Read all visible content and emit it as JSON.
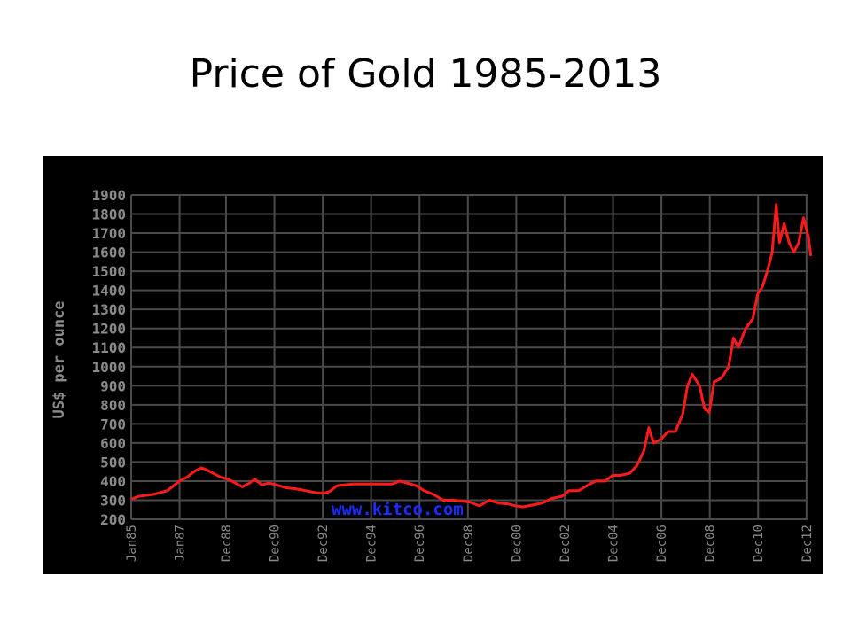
{
  "slide": {
    "title": "Price of Gold 1985-2013"
  },
  "chart_data": {
    "type": "line",
    "title": "",
    "xlabel": "",
    "ylabel": "US$ per ounce",
    "watermark": "www.kitco.com",
    "ylim": [
      200,
      1900
    ],
    "yticks": [
      200,
      300,
      400,
      500,
      600,
      700,
      800,
      900,
      1000,
      1100,
      1200,
      1300,
      1400,
      1500,
      1600,
      1700,
      1800,
      1900
    ],
    "xlim": [
      1985.0,
      2013.0
    ],
    "xticks": [
      {
        "label": "Jan85",
        "x": 1985.0
      },
      {
        "label": "Jan87",
        "x": 1987.0
      },
      {
        "label": "Dec88",
        "x": 1988.92
      },
      {
        "label": "Dec90",
        "x": 1990.92
      },
      {
        "label": "Dec92",
        "x": 1992.92
      },
      {
        "label": "Dec94",
        "x": 1994.92
      },
      {
        "label": "Dec96",
        "x": 1996.92
      },
      {
        "label": "Dec98",
        "x": 1998.92
      },
      {
        "label": "Dec00",
        "x": 2000.92
      },
      {
        "label": "Dec02",
        "x": 2002.92
      },
      {
        "label": "Dec04",
        "x": 2004.92
      },
      {
        "label": "Dec06",
        "x": 2006.92
      },
      {
        "label": "Dec08",
        "x": 2008.92
      },
      {
        "label": "Dec10",
        "x": 2010.92
      },
      {
        "label": "Dec12",
        "x": 2012.92
      }
    ],
    "grid": true,
    "colors": {
      "background": "#000000",
      "grid": "#4a4a4a",
      "axis_text": "#8a8a8a",
      "line": "#ff1a1a",
      "watermark": "#1a2cff"
    },
    "series": [
      {
        "values": [
          [
            1985.0,
            305
          ],
          [
            1985.3,
            320
          ],
          [
            1985.6,
            325
          ],
          [
            1985.9,
            330
          ],
          [
            1986.2,
            340
          ],
          [
            1986.5,
            350
          ],
          [
            1986.8,
            380
          ],
          [
            1987.0,
            400
          ],
          [
            1987.3,
            420
          ],
          [
            1987.6,
            450
          ],
          [
            1987.9,
            470
          ],
          [
            1988.1,
            460
          ],
          [
            1988.4,
            440
          ],
          [
            1988.7,
            420
          ],
          [
            1989.0,
            410
          ],
          [
            1989.3,
            390
          ],
          [
            1989.6,
            370
          ],
          [
            1989.9,
            390
          ],
          [
            1990.1,
            410
          ],
          [
            1990.4,
            380
          ],
          [
            1990.7,
            390
          ],
          [
            1991.0,
            380
          ],
          [
            1991.4,
            365
          ],
          [
            1991.8,
            360
          ],
          [
            1992.2,
            350
          ],
          [
            1992.6,
            340
          ],
          [
            1992.9,
            335
          ],
          [
            1993.2,
            345
          ],
          [
            1993.5,
            375
          ],
          [
            1993.8,
            380
          ],
          [
            1994.2,
            385
          ],
          [
            1994.6,
            385
          ],
          [
            1995.0,
            385
          ],
          [
            1995.4,
            385
          ],
          [
            1995.8,
            385
          ],
          [
            1996.1,
            400
          ],
          [
            1996.4,
            390
          ],
          [
            1996.8,
            375
          ],
          [
            1997.1,
            350
          ],
          [
            1997.5,
            330
          ],
          [
            1997.9,
            300
          ],
          [
            1998.3,
            300
          ],
          [
            1998.7,
            295
          ],
          [
            1999.0,
            290
          ],
          [
            1999.4,
            270
          ],
          [
            1999.8,
            300
          ],
          [
            2000.2,
            285
          ],
          [
            2000.6,
            280
          ],
          [
            2000.9,
            270
          ],
          [
            2001.2,
            265
          ],
          [
            2001.6,
            275
          ],
          [
            2002.0,
            285
          ],
          [
            2002.4,
            310
          ],
          [
            2002.8,
            320
          ],
          [
            2003.1,
            350
          ],
          [
            2003.5,
            350
          ],
          [
            2003.9,
            380
          ],
          [
            2004.2,
            400
          ],
          [
            2004.6,
            400
          ],
          [
            2004.9,
            430
          ],
          [
            2005.2,
            430
          ],
          [
            2005.6,
            440
          ],
          [
            2005.9,
            480
          ],
          [
            2006.2,
            560
          ],
          [
            2006.4,
            680
          ],
          [
            2006.6,
            600
          ],
          [
            2006.9,
            620
          ],
          [
            2007.2,
            660
          ],
          [
            2007.5,
            660
          ],
          [
            2007.8,
            750
          ],
          [
            2008.0,
            900
          ],
          [
            2008.2,
            960
          ],
          [
            2008.5,
            900
          ],
          [
            2008.7,
            780
          ],
          [
            2008.9,
            760
          ],
          [
            2009.1,
            920
          ],
          [
            2009.4,
            940
          ],
          [
            2009.7,
            1000
          ],
          [
            2009.9,
            1150
          ],
          [
            2010.1,
            1100
          ],
          [
            2010.4,
            1200
          ],
          [
            2010.7,
            1250
          ],
          [
            2010.9,
            1380
          ],
          [
            2011.1,
            1420
          ],
          [
            2011.3,
            1500
          ],
          [
            2011.5,
            1600
          ],
          [
            2011.67,
            1850
          ],
          [
            2011.8,
            1650
          ],
          [
            2012.0,
            1750
          ],
          [
            2012.2,
            1650
          ],
          [
            2012.4,
            1600
          ],
          [
            2012.6,
            1650
          ],
          [
            2012.8,
            1780
          ],
          [
            2013.0,
            1680
          ],
          [
            2013.1,
            1580
          ]
        ]
      }
    ]
  }
}
